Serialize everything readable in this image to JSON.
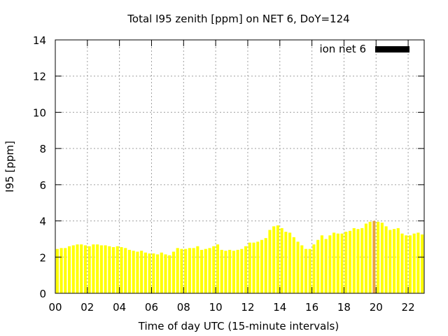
{
  "chart_data": {
    "type": "bar",
    "title": "Total I95 zenith [ppm] on NET 6, DoY=124",
    "xlabel": "Time of day UTC (15-minute intervals)",
    "ylabel": "I95 [ppm]",
    "ylim": [
      0,
      14
    ],
    "xlim": [
      0,
      23
    ],
    "yticks": [
      "0",
      "2",
      "4",
      "6",
      "8",
      "10",
      "12",
      "14"
    ],
    "xticks": [
      "00",
      "02",
      "04",
      "06",
      "08",
      "10",
      "12",
      "14",
      "16",
      "18",
      "20",
      "22"
    ],
    "grid": true,
    "legend_position": "top-right",
    "series": [
      {
        "name": "ion net 6",
        "bin_hours": 0.25,
        "x_start": 0,
        "color": "#ffff00",
        "highlight_color": "#e8a43a",
        "highlight_index": 79,
        "values": [
          2.45,
          2.5,
          2.5,
          2.6,
          2.65,
          2.7,
          2.7,
          2.65,
          2.6,
          2.7,
          2.7,
          2.65,
          2.65,
          2.6,
          2.55,
          2.6,
          2.55,
          2.5,
          2.4,
          2.35,
          2.3,
          2.35,
          2.25,
          2.2,
          2.2,
          2.15,
          2.25,
          2.15,
          2.1,
          2.3,
          2.5,
          2.45,
          2.45,
          2.5,
          2.5,
          2.6,
          2.4,
          2.45,
          2.5,
          2.6,
          2.7,
          2.4,
          2.35,
          2.4,
          2.35,
          2.4,
          2.45,
          2.6,
          2.8,
          2.8,
          2.85,
          2.95,
          3.05,
          3.5,
          3.7,
          3.75,
          3.6,
          3.4,
          3.35,
          3.1,
          2.85,
          2.65,
          2.45,
          2.45,
          2.7,
          2.95,
          3.2,
          3.0,
          3.2,
          3.35,
          3.3,
          3.3,
          3.4,
          3.45,
          3.6,
          3.55,
          3.6,
          3.85,
          3.95,
          4.0,
          3.95,
          3.9,
          3.7,
          3.5,
          3.55,
          3.6,
          3.3,
          3.2,
          3.2,
          3.3,
          3.35,
          3.25
        ]
      }
    ]
  }
}
